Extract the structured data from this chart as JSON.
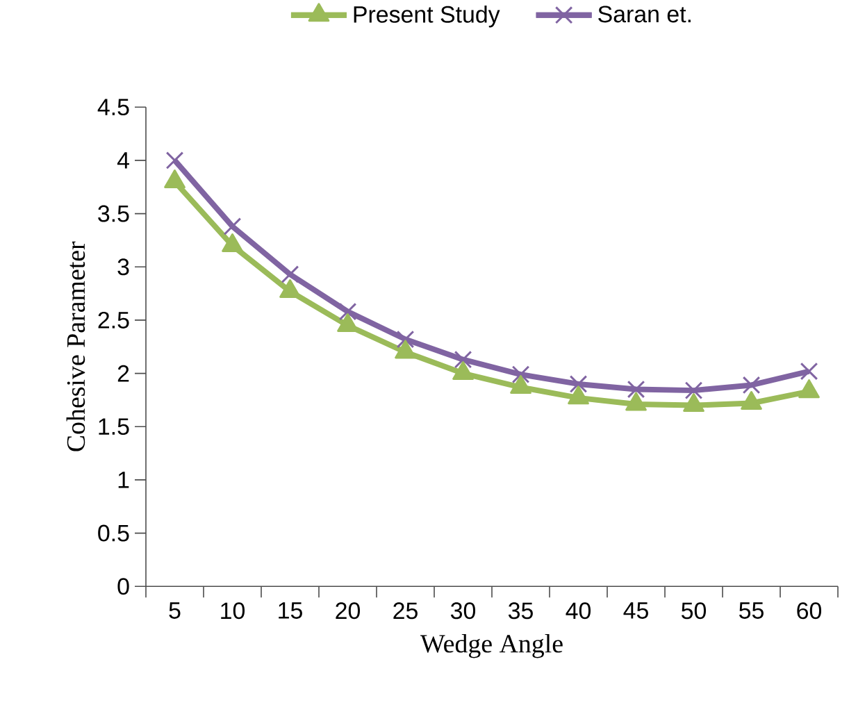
{
  "chart_data": {
    "type": "line",
    "xlabel": "Wedge Angle",
    "ylabel": "Cohesive Parameter",
    "categories": [
      "5",
      "10",
      "15",
      "20",
      "25",
      "30",
      "35",
      "40",
      "45",
      "50",
      "55",
      "60"
    ],
    "series": [
      {
        "name": "Present Study",
        "color": "#9bbb59",
        "marker": "triangle",
        "values": [
          3.8,
          3.2,
          2.77,
          2.45,
          2.2,
          2.0,
          1.87,
          1.77,
          1.71,
          1.7,
          1.72,
          1.83
        ]
      },
      {
        "name": "Saran et.",
        "color": "#8064a2",
        "marker": "cross",
        "values": [
          4.0,
          3.38,
          2.93,
          2.58,
          2.32,
          2.13,
          1.99,
          1.9,
          1.85,
          1.84,
          1.89,
          2.02
        ]
      }
    ],
    "ylim": [
      0,
      4.5
    ],
    "yticks": [
      0,
      0.5,
      1,
      1.5,
      2,
      2.5,
      3,
      3.5,
      4,
      4.5
    ],
    "grid": false,
    "legend": "top",
    "line_style": "solid"
  }
}
